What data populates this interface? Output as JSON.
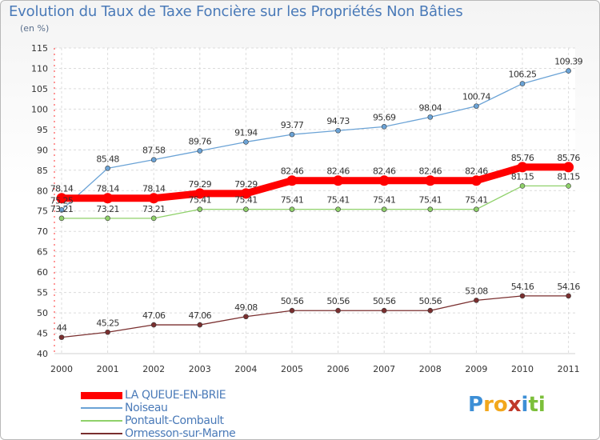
{
  "title": "Evolution du Taux de Taxe Foncière sur les Propriétés Non Bâties",
  "subtitle": "(en %)",
  "logo": {
    "letters": [
      "P",
      "r",
      "o",
      "x",
      "i",
      "t",
      "i"
    ],
    "colors": [
      "#3d8fd6",
      "#f2a71c",
      "#f2a71c",
      "#c0392b",
      "#3d8fd6",
      "#7cbf3a",
      "#7cbf3a"
    ]
  },
  "chart_data": {
    "type": "line",
    "x": [
      "2000",
      "2001",
      "2002",
      "2003",
      "2004",
      "2005",
      "2006",
      "2007",
      "2008",
      "2009",
      "2010",
      "2011"
    ],
    "ylim": [
      40,
      115
    ],
    "yticks": [
      40,
      45,
      50,
      55,
      60,
      65,
      70,
      75,
      80,
      85,
      90,
      95,
      100,
      105,
      110,
      115
    ],
    "grid": true,
    "legend_position": "bottom-left",
    "series": [
      {
        "name": "LA QUEUE-EN-BRIE",
        "color": "#ff0000",
        "highlight": true,
        "values": [
          78.14,
          78.14,
          78.14,
          79.29,
          79.29,
          82.46,
          82.46,
          82.46,
          82.46,
          82.46,
          85.76,
          85.76
        ],
        "labels": [
          "78.14",
          "78.14",
          "78.14",
          "79.29",
          "79.29",
          "82.46",
          "82.46",
          "82.46",
          "82.46",
          "82.46",
          "85.76",
          "85.76"
        ]
      },
      {
        "name": "Noiseau",
        "color": "#6ba3d6",
        "highlight": false,
        "values": [
          75.25,
          85.48,
          87.58,
          89.76,
          91.94,
          93.77,
          94.73,
          95.69,
          98.04,
          100.74,
          106.25,
          109.39
        ],
        "labels": [
          "75.25",
          "85.48",
          "87.58",
          "89.76",
          "91.94",
          "93.77",
          "94.73",
          "95.69",
          "98.04",
          "100.74",
          "106.25",
          "109.39"
        ]
      },
      {
        "name": "Pontault-Combault",
        "color": "#8fd16a",
        "highlight": false,
        "values": [
          73.21,
          73.21,
          73.21,
          75.41,
          75.41,
          75.41,
          75.41,
          75.41,
          75.41,
          75.41,
          81.15,
          81.15
        ],
        "labels": [
          "73.21",
          "73.21",
          "73.21",
          "75.41",
          "75.41",
          "75.41",
          "75.41",
          "75.41",
          "75.41",
          "75.41",
          "81.15",
          "81.15"
        ]
      },
      {
        "name": "Ormesson-sur-Marne",
        "color": "#7a2f2f",
        "highlight": false,
        "values": [
          44,
          45.25,
          47.06,
          47.06,
          49.08,
          50.56,
          50.56,
          50.56,
          50.56,
          53.08,
          54.16,
          54.16
        ],
        "labels": [
          "44",
          "45.25",
          "47.06",
          "47.06",
          "49.08",
          "50.56",
          "50.56",
          "50.56",
          "50.56",
          "53.08",
          "54.16",
          "54.16"
        ]
      }
    ]
  }
}
